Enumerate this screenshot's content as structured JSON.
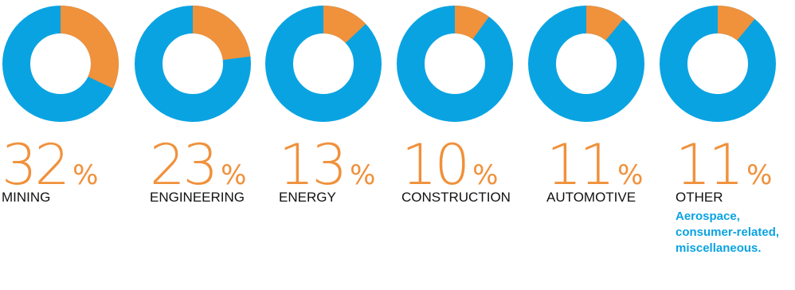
{
  "colors": {
    "share": "#f0913b",
    "rest": "#0aa3e2"
  },
  "chart_data": {
    "type": "pie",
    "variant": "donut",
    "items": [
      {
        "label": "MINING",
        "value": 32,
        "unit": "%"
      },
      {
        "label": "ENGINEERING",
        "value": 23,
        "unit": "%"
      },
      {
        "label": "ENERGY",
        "value": 13,
        "unit": "%"
      },
      {
        "label": "CONSTRUCTION",
        "value": 10,
        "unit": "%"
      },
      {
        "label": "AUTOMOTIVE",
        "value": 11,
        "unit": "%"
      },
      {
        "label": "OTHER",
        "value": 11,
        "unit": "%",
        "note": "Aerospace, consumer-related, miscellaneous."
      }
    ]
  }
}
